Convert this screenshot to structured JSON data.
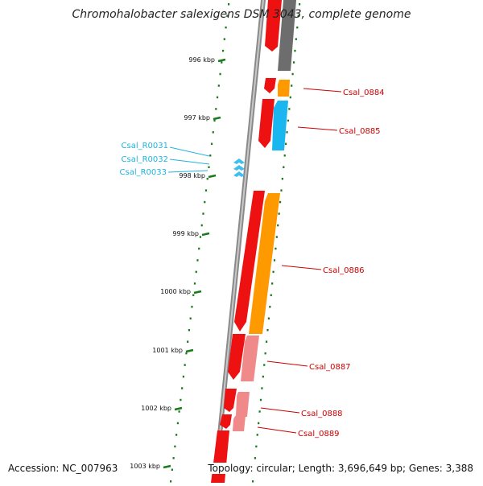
{
  "title": "Chromohalobacter salexigens DSM 3043, complete genome",
  "footer": {
    "accession": "Accession: NC_007963",
    "summary": "Topology: circular; Length: 3,696,649 bp; Genes: 3,388"
  },
  "colors": {
    "forward_cds": "#ee1111",
    "forward_cds_light": "#f08a8a",
    "reverse_cds": "#ff9900",
    "reverse_cds_blue": "#19b6f0",
    "pseudo_gray": "#777777",
    "axis_tick": "#1b7a1b",
    "feature_label_red": "#cc0000",
    "feature_label_cyan": "#1fb3dd"
  },
  "ticks": [
    {
      "label": "996 kbp"
    },
    {
      "label": "997 kbp"
    },
    {
      "label": "998 kbp"
    },
    {
      "label": "999 kbp"
    },
    {
      "label": "1000 kbp"
    },
    {
      "label": "1001 kbp"
    },
    {
      "label": "1002 kbp"
    },
    {
      "label": "1003 kbp"
    }
  ],
  "features": [
    {
      "label": "Csal_0884",
      "color_key": "feature_label_red"
    },
    {
      "label": "Csal_0885",
      "color_key": "feature_label_red"
    },
    {
      "label": "Csal_0886",
      "color_key": "feature_label_red"
    },
    {
      "label": "Csal_0887",
      "color_key": "feature_label_red"
    },
    {
      "label": "Csal_0888",
      "color_key": "feature_label_red"
    },
    {
      "label": "Csal_0889",
      "color_key": "feature_label_red"
    },
    {
      "label": "Csal_R0031",
      "color_key": "feature_label_cyan"
    },
    {
      "label": "Csal_R0032",
      "color_key": "feature_label_cyan"
    },
    {
      "label": "Csal_R0033",
      "color_key": "feature_label_cyan"
    }
  ]
}
